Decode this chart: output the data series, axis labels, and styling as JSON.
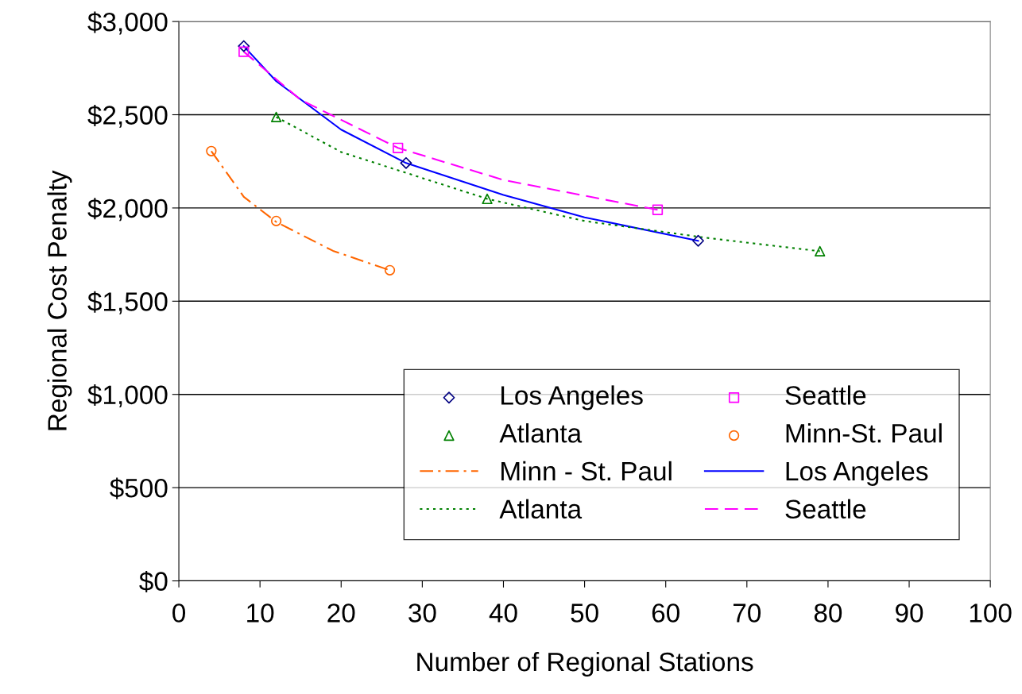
{
  "chart_data": {
    "type": "scatter",
    "xlabel": "Number of Regional Stations",
    "ylabel": "Regional Cost Penalty",
    "xlim": [
      0,
      100
    ],
    "xticks": [
      0,
      10,
      20,
      30,
      40,
      50,
      60,
      70,
      80,
      90,
      100
    ],
    "ylim": [
      0,
      3000
    ],
    "yticks": [
      {
        "value": 0,
        "label": "$0"
      },
      {
        "value": 500,
        "label": "$500"
      },
      {
        "value": 1000,
        "label": "$1,000"
      },
      {
        "value": 1500,
        "label": "$1,500"
      },
      {
        "value": 2000,
        "label": "$2,000"
      },
      {
        "value": 2500,
        "label": "$2,500"
      },
      {
        "value": 3000,
        "label": "$3,000"
      }
    ],
    "grid": "y",
    "legend": "bottom right",
    "series": [
      {
        "name": "Los Angeles",
        "marker": "diamond",
        "color": "#000080",
        "x": [
          8,
          28,
          64
        ],
        "values": [
          2868,
          2241,
          1824
        ]
      },
      {
        "name": "Seattle",
        "marker": "square",
        "color": "#ff00ff",
        "x": [
          8,
          27,
          59
        ],
        "values": [
          2838,
          2322,
          1990
        ]
      },
      {
        "name": "Atlanta",
        "marker": "triangle",
        "color": "#008000",
        "x": [
          12,
          38,
          79
        ],
        "values": [
          2488,
          2049,
          1768
        ]
      },
      {
        "name": "Minn-St. Paul",
        "marker": "circle",
        "color": "#ff6600",
        "x": [
          4,
          12,
          26
        ],
        "values": [
          2305,
          1930,
          1666
        ]
      },
      {
        "name": "Minn - St. Paul",
        "type": "line",
        "line_style": "dashdot",
        "marker": "none",
        "color": "#ff6600",
        "x": [
          4,
          8,
          12,
          19,
          26
        ],
        "values": [
          2305,
          2060,
          1925,
          1770,
          1666
        ]
      },
      {
        "name": "Los Angeles",
        "type": "line",
        "line_style": "solid",
        "marker": "none",
        "color": "#0000ff",
        "x": [
          8,
          12,
          20,
          28,
          40,
          50,
          64
        ],
        "values": [
          2868,
          2680,
          2420,
          2241,
          2070,
          1950,
          1824
        ]
      },
      {
        "name": "Atlanta",
        "type": "line",
        "line_style": "dotted",
        "marker": "none",
        "color": "#008000",
        "x": [
          12,
          20,
          38,
          50,
          65,
          79
        ],
        "values": [
          2488,
          2300,
          2049,
          1930,
          1840,
          1768
        ]
      },
      {
        "name": "Seattle",
        "type": "line",
        "line_style": "dashed",
        "marker": "none",
        "color": "#ff00ff",
        "x": [
          8,
          15,
          27,
          40,
          59
        ],
        "values": [
          2838,
          2580,
          2322,
          2150,
          1990
        ]
      }
    ]
  }
}
